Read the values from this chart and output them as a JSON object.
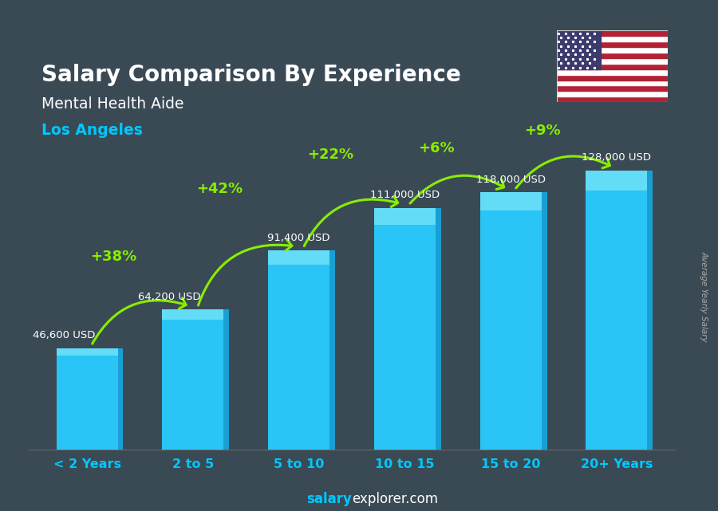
{
  "title": "Salary Comparison By Experience",
  "subtitle1": "Mental Health Aide",
  "subtitle2": "Los Angeles",
  "categories": [
    "< 2 Years",
    "2 to 5",
    "5 to 10",
    "10 to 15",
    "15 to 20",
    "20+ Years"
  ],
  "values": [
    46600,
    64200,
    91400,
    111000,
    118000,
    128000
  ],
  "labels": [
    "46,600 USD",
    "64,200 USD",
    "91,400 USD",
    "111,000 USD",
    "118,000 USD",
    "128,000 USD"
  ],
  "pct_changes": [
    "+38%",
    "+42%",
    "+22%",
    "+6%",
    "+9%"
  ],
  "bar_face_color": "#29c5f6",
  "bar_top_color": "#5ddcf8",
  "bar_side_color": "#1a9fd4",
  "bar_highlight_color": "#7de8f8",
  "bg_color": "#3a4a55",
  "title_color": "#ffffff",
  "subtitle1_color": "#ffffff",
  "subtitle2_color": "#00c8ff",
  "label_color": "#ffffff",
  "pct_color": "#88ee00",
  "arrow_color": "#88ee00",
  "xtick_color": "#00c8ff",
  "footer_salary_color": "#00c8ff",
  "footer_rest_color": "#ffffff",
  "ylabel_text": "Average Yearly Salary",
  "ylabel_color": "#aaaaaa",
  "ylim": [
    0,
    150000
  ],
  "footer_bold": "salary",
  "footer_normal": "explorer.com"
}
